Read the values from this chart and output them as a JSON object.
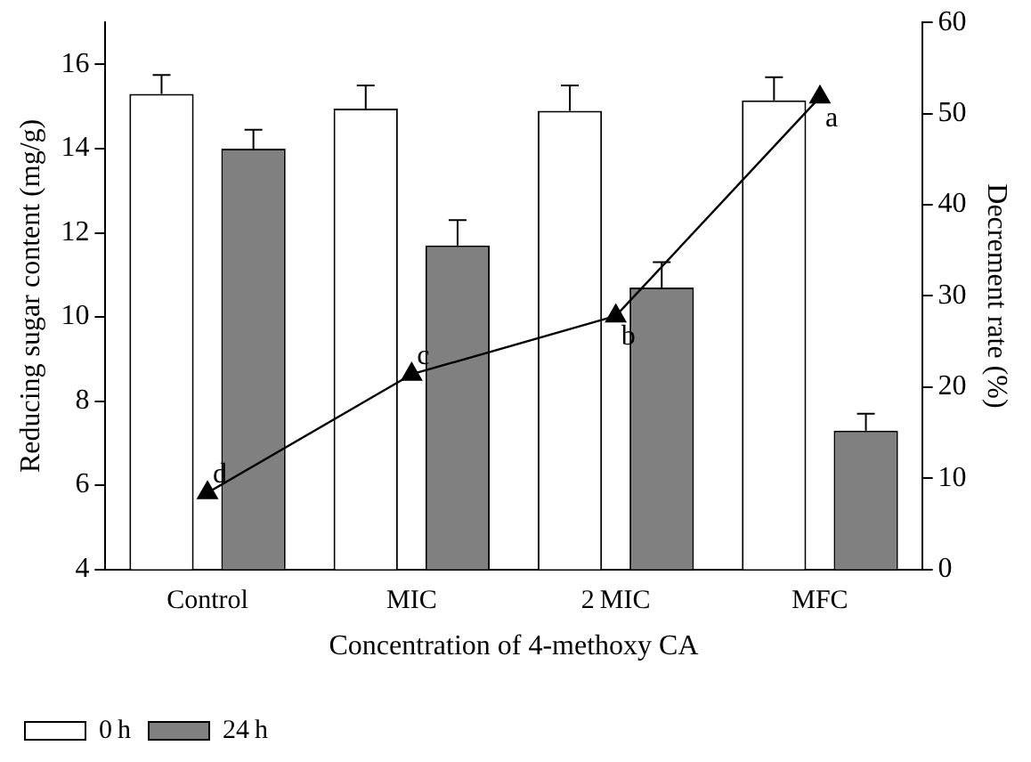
{
  "chart_data": {
    "type": "bar",
    "xlabel": "Concentration of 4-methoxy CA",
    "ylabel": "Reducing sugar content (mg/g)",
    "y2label": "Decrement rate (%)",
    "categories": [
      "Control",
      "MIC",
      "2 MIC",
      "MFC"
    ],
    "series": [
      {
        "name": "0 h",
        "color": "#ffffff",
        "values": [
          15.3,
          14.95,
          14.9,
          15.15
        ],
        "errors": [
          0.45,
          0.55,
          0.6,
          0.55
        ]
      },
      {
        "name": "24 h",
        "color": "#808080",
        "values": [
          14.0,
          11.7,
          10.7,
          7.3
        ],
        "errors": [
          0.45,
          0.6,
          0.6,
          0.4
        ]
      },
      {
        "type": "line",
        "axis": "y2",
        "color": "#000000",
        "marker": "triangle",
        "values": [
          8.4,
          21.4,
          27.8,
          51.8
        ],
        "value_labels": [
          "d",
          "c",
          "b",
          "a"
        ]
      }
    ],
    "ylim": [
      4,
      17
    ],
    "yticks": [
      4,
      6,
      8,
      10,
      12,
      14,
      16
    ],
    "y2lim": [
      0,
      60
    ],
    "y2ticks": [
      0,
      10,
      20,
      30,
      40,
      50,
      60
    ],
    "legend": "bottom left",
    "grid": false
  }
}
